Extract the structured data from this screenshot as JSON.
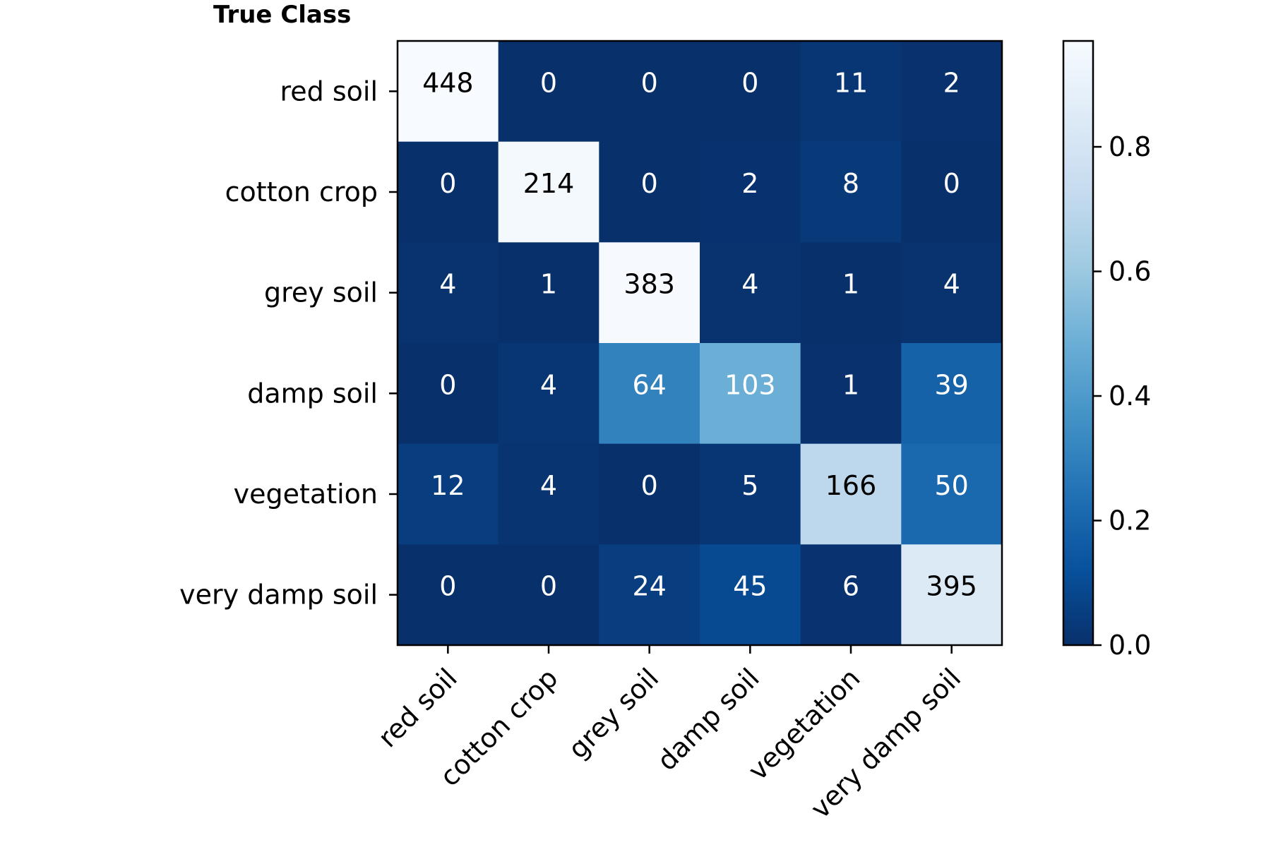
{
  "chart_data": {
    "type": "heatmap",
    "title": "",
    "ylabel": "True Class",
    "xlabel": "",
    "x_categories": [
      "red soil",
      "cotton crop",
      "grey soil",
      "damp soil",
      "vegetation",
      "very damp soil"
    ],
    "y_categories": [
      "red soil",
      "cotton crop",
      "grey soil",
      "damp soil",
      "vegetation",
      "very damp soil"
    ],
    "matrix": [
      [
        448,
        0,
        0,
        0,
        11,
        2
      ],
      [
        0,
        214,
        0,
        2,
        8,
        0
      ],
      [
        4,
        1,
        383,
        4,
        1,
        4
      ],
      [
        0,
        4,
        64,
        103,
        1,
        39
      ],
      [
        12,
        4,
        0,
        5,
        166,
        50
      ],
      [
        0,
        0,
        24,
        45,
        6,
        395
      ]
    ],
    "normalization": "row",
    "colormap": "Blues",
    "colorbar": {
      "ticks": [
        0.0,
        0.2,
        0.4,
        0.6,
        0.8
      ],
      "tick_labels": [
        "0.0",
        "0.2",
        "0.4",
        "0.6",
        "0.8"
      ],
      "range": [
        0,
        0.97
      ]
    },
    "x_tick_rotation_deg": 45,
    "text_color_dark": "#000000",
    "text_color_light": "#ffffff"
  }
}
